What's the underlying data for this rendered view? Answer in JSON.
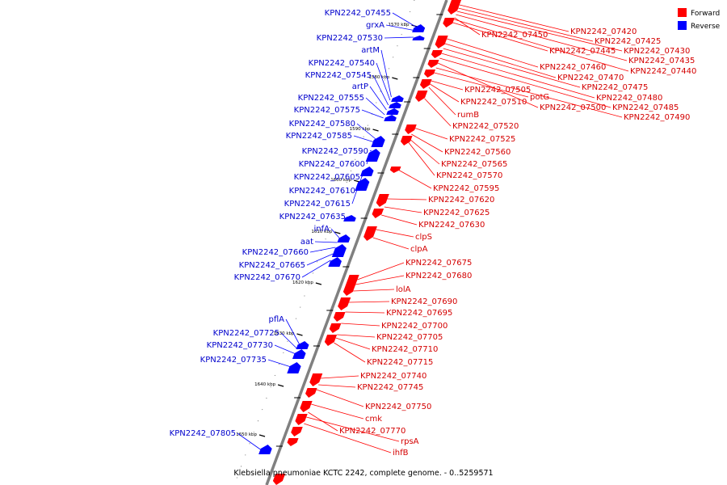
{
  "caption": "Klebsiella pneumoniae KCTC 2242, complete genome. - 0..5259571",
  "legend": [
    {
      "label": "Forward",
      "color": "#ff0000"
    },
    {
      "label": "Reverse",
      "color": "#0000ff"
    }
  ],
  "colors": {
    "forward": "#ff0000",
    "reverse": "#0000ff",
    "forward_text": "#d40000",
    "reverse_text": "#0000cc",
    "backbone": "#808080"
  },
  "scale_ticks": [
    "1570 kbp",
    "1580 kbp",
    "1590 kbp",
    "1600 kbp",
    "1610 kbp",
    "1620 kbp",
    "1630 kbp",
    "1640 kbp",
    "1650 kbp"
  ],
  "forward_genes": [
    "KPN2242_07420",
    "KPN2242_07425",
    "KPN2242_07450",
    "KPN2242_07445",
    "KPN2242_07430",
    "KPN2242_07435",
    "KPN2242_07440",
    "KPN2242_07460",
    "KPN2242_07470",
    "KPN2242_07475",
    "KPN2242_07505",
    "potG",
    "KPN2242_07480",
    "KPN2242_07510",
    "KPN2242_07500",
    "KPN2242_07485",
    "rumB",
    "KPN2242_07490",
    "KPN2242_07520",
    "KPN2242_07525",
    "KPN2242_07560",
    "KPN2242_07565",
    "KPN2242_07570",
    "KPN2242_07595",
    "KPN2242_07620",
    "KPN2242_07625",
    "KPN2242_07630",
    "clpS",
    "clpA",
    "KPN2242_07675",
    "KPN2242_07680",
    "lolA",
    "KPN2242_07690",
    "KPN2242_07695",
    "KPN2242_07700",
    "KPN2242_07705",
    "KPN2242_07710",
    "KPN2242_07715",
    "KPN2242_07740",
    "KPN2242_07745",
    "KPN2242_07750",
    "cmk",
    "KPN2242_07770",
    "rpsA",
    "ihfB"
  ],
  "reverse_genes": [
    "KPN2242_07455",
    "grxA",
    "KPN2242_07530",
    "artM",
    "KPN2242_07540",
    "KPN2242_07545",
    "artP",
    "KPN2242_07555",
    "KPN2242_07575",
    "KPN2242_07580",
    "KPN2242_07585",
    "KPN2242_07590",
    "KPN2242_07600",
    "KPN2242_07605",
    "KPN2242_07610",
    "KPN2242_07615",
    "KPN2242_07635",
    "infA",
    "aat",
    "KPN2242_07660",
    "KPN2242_07665",
    "KPN2242_07670",
    "pflA",
    "KPN2242_07725",
    "KPN2242_07730",
    "KPN2242_07735",
    "KPN2242_07805"
  ]
}
